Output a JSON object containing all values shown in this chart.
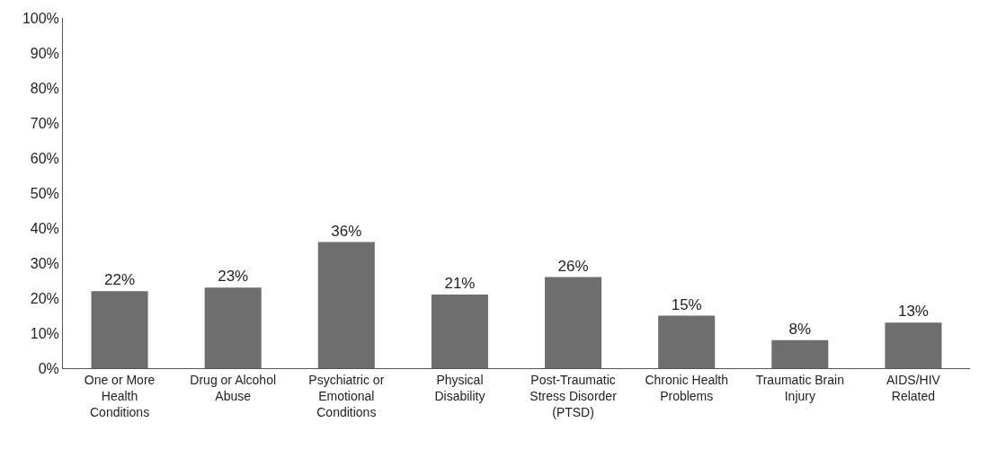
{
  "chart_data": {
    "type": "bar",
    "categories": [
      "One or More Health Conditions",
      "Drug or Alcohol Abuse",
      "Psychiatric or Emotional Conditions",
      "Physical Disability",
      "Post-Traumatic Stress Disorder (PTSD)",
      "Chronic Health Problems",
      "Traumatic Brain Injury",
      "AIDS/HIV Related"
    ],
    "values": [
      22,
      23,
      36,
      21,
      26,
      15,
      8,
      13
    ],
    "value_labels": [
      "22%",
      "23%",
      "36%",
      "21%",
      "26%",
      "15%",
      "8%",
      "13%"
    ],
    "color": "#6e6e6e",
    "ylim": [
      0,
      100
    ],
    "yticks": [
      {
        "value": 0,
        "label": "0%"
      },
      {
        "value": 10,
        "label": "10%"
      },
      {
        "value": 20,
        "label": "20%"
      },
      {
        "value": 30,
        "label": "30%"
      },
      {
        "value": 40,
        "label": "40%"
      },
      {
        "value": 50,
        "label": "50%"
      },
      {
        "value": 60,
        "label": "60%"
      },
      {
        "value": 70,
        "label": "70%"
      },
      {
        "value": 80,
        "label": "80%"
      },
      {
        "value": 90,
        "label": "90%"
      },
      {
        "value": 100,
        "label": "100%"
      }
    ],
    "grid": false
  }
}
